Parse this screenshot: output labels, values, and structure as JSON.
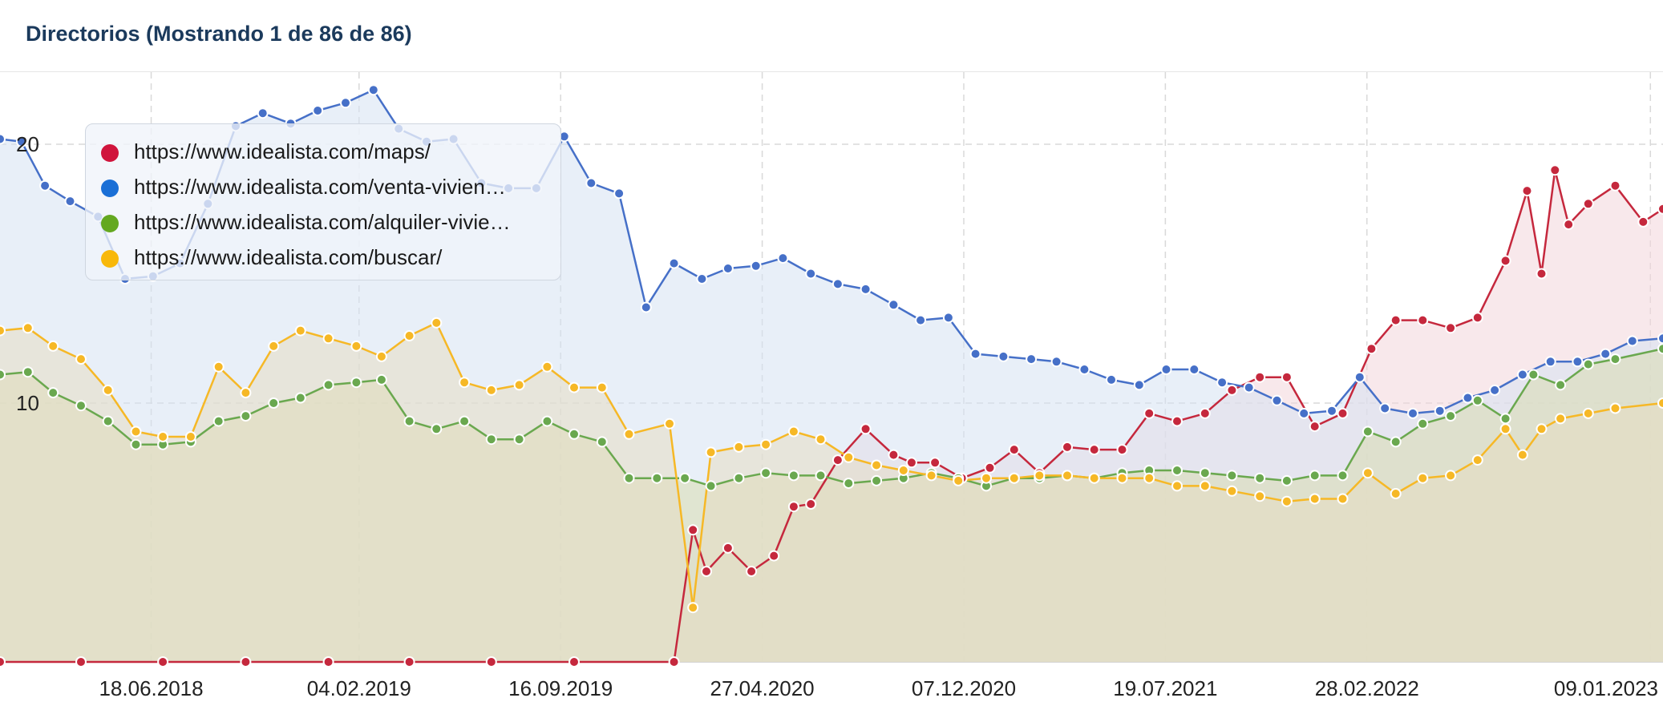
{
  "header": {
    "title": "Directorios (Mostrando 1 de 86 de 86)"
  },
  "legend": {
    "items": [
      {
        "label": "https://www.idealista.com/maps/",
        "color": "#d0143c"
      },
      {
        "label": "https://www.idealista.com/venta-vivien…",
        "color": "#1a6fd6"
      },
      {
        "label": "https://www.idealista.com/alquiler-vivie…",
        "color": "#64a820"
      },
      {
        "label": "https://www.idealista.com/buscar/",
        "color": "#f8b80a"
      }
    ]
  },
  "chart_data": {
    "type": "area",
    "x_start": "2018-01-01",
    "x_end": "2023-01-23",
    "x_ticks": [
      "18.06.2018",
      "04.02.2019",
      "16.09.2019",
      "27.04.2020",
      "07.12.2020",
      "19.07.2021",
      "28.02.2022",
      "09.01.2023"
    ],
    "y_ticks": [
      "10",
      "20"
    ],
    "ylim": [
      0,
      24
    ],
    "grid": true,
    "legend_position": "top-left",
    "series": [
      {
        "name": "https://www.idealista.com/maps/",
        "color": "#c5283d",
        "fill": "#f2d6da",
        "points": [
          [
            "2018-01-01",
            0
          ],
          [
            "2018-04-01",
            0
          ],
          [
            "2018-07-01",
            0
          ],
          [
            "2018-10-01",
            0
          ],
          [
            "2019-01-01",
            0
          ],
          [
            "2019-04-01",
            0
          ],
          [
            "2019-07-01",
            0
          ],
          [
            "2019-10-01",
            0
          ],
          [
            "2020-01-20",
            0
          ],
          [
            "2020-02-10",
            5.1
          ],
          [
            "2020-02-25",
            3.5
          ],
          [
            "2020-03-20",
            4.4
          ],
          [
            "2020-04-15",
            3.5
          ],
          [
            "2020-05-10",
            4.1
          ],
          [
            "2020-06-01",
            6
          ],
          [
            "2020-06-20",
            6.1
          ],
          [
            "2020-07-20",
            7.8
          ],
          [
            "2020-08-20",
            9
          ],
          [
            "2020-09-20",
            8
          ],
          [
            "2020-10-10",
            7.7
          ],
          [
            "2020-11-05",
            7.7
          ],
          [
            "2020-12-05",
            7.1
          ],
          [
            "2021-01-05",
            7.5
          ],
          [
            "2021-02-01",
            8.2
          ],
          [
            "2021-03-01",
            7.3
          ],
          [
            "2021-04-01",
            8.3
          ],
          [
            "2021-05-01",
            8.2
          ],
          [
            "2021-06-01",
            8.2
          ],
          [
            "2021-07-01",
            9.6
          ],
          [
            "2021-08-01",
            9.3
          ],
          [
            "2021-09-01",
            9.6
          ],
          [
            "2021-10-01",
            10.5
          ],
          [
            "2021-11-01",
            11
          ],
          [
            "2021-12-01",
            11
          ],
          [
            "2022-01-01",
            9.1
          ],
          [
            "2022-02-01",
            9.6
          ],
          [
            "2022-03-05",
            12.1
          ],
          [
            "2022-04-01",
            13.2
          ],
          [
            "2022-05-01",
            13.2
          ],
          [
            "2022-06-01",
            12.9
          ],
          [
            "2022-07-01",
            13.3
          ],
          [
            "2022-08-01",
            15.5
          ],
          [
            "2022-08-25",
            18.2
          ],
          [
            "2022-09-10",
            15
          ],
          [
            "2022-09-25",
            19
          ],
          [
            "2022-10-10",
            16.9
          ],
          [
            "2022-11-01",
            17.7
          ],
          [
            "2022-12-01",
            18.4
          ],
          [
            "2023-01-01",
            17
          ],
          [
            "2023-01-23",
            17.5
          ]
        ]
      },
      {
        "name": "https://www.idealista.com/venta-vivienda/",
        "color": "#4670c8",
        "fill": "#d6e2f3",
        "points": [
          [
            "2018-01-01",
            20.2
          ],
          [
            "2018-01-25",
            20.1
          ],
          [
            "2018-02-20",
            18.4
          ],
          [
            "2018-03-20",
            17.8
          ],
          [
            "2018-04-20",
            17.2
          ],
          [
            "2018-05-20",
            14.8
          ],
          [
            "2018-06-20",
            14.9
          ],
          [
            "2018-07-20",
            15.4
          ],
          [
            "2018-08-20",
            17.7
          ],
          [
            "2018-09-20",
            20.7
          ],
          [
            "2018-10-20",
            21.2
          ],
          [
            "2018-11-20",
            20.8
          ],
          [
            "2018-12-20",
            21.3
          ],
          [
            "2019-01-20",
            21.6
          ],
          [
            "2019-02-20",
            22.1
          ],
          [
            "2019-03-20",
            20.6
          ],
          [
            "2019-04-20",
            20.1
          ],
          [
            "2019-05-20",
            20.2
          ],
          [
            "2019-06-20",
            18.5
          ],
          [
            "2019-07-20",
            18.3
          ],
          [
            "2019-08-20",
            18.3
          ],
          [
            "2019-09-20",
            20.3
          ],
          [
            "2019-10-20",
            18.5
          ],
          [
            "2019-11-20",
            18.1
          ],
          [
            "2019-12-20",
            13.7
          ],
          [
            "2020-01-20",
            15.4
          ],
          [
            "2020-02-20",
            14.8
          ],
          [
            "2020-03-20",
            15.2
          ],
          [
            "2020-04-20",
            15.3
          ],
          [
            "2020-05-20",
            15.6
          ],
          [
            "2020-06-20",
            15
          ],
          [
            "2020-07-20",
            14.6
          ],
          [
            "2020-08-20",
            14.4
          ],
          [
            "2020-09-20",
            13.8
          ],
          [
            "2020-10-20",
            13.2
          ],
          [
            "2020-11-20",
            13.3
          ],
          [
            "2020-12-20",
            11.9
          ],
          [
            "2021-01-20",
            11.8
          ],
          [
            "2021-02-20",
            11.7
          ],
          [
            "2021-03-20",
            11.6
          ],
          [
            "2021-04-20",
            11.3
          ],
          [
            "2021-05-20",
            10.9
          ],
          [
            "2021-06-20",
            10.7
          ],
          [
            "2021-07-20",
            11.3
          ],
          [
            "2021-08-20",
            11.3
          ],
          [
            "2021-09-20",
            10.8
          ],
          [
            "2021-10-20",
            10.6
          ],
          [
            "2021-11-20",
            10.1
          ],
          [
            "2021-12-20",
            9.6
          ],
          [
            "2022-01-20",
            9.7
          ],
          [
            "2022-02-20",
            11
          ],
          [
            "2022-03-20",
            9.8
          ],
          [
            "2022-04-20",
            9.6
          ],
          [
            "2022-05-20",
            9.7
          ],
          [
            "2022-06-20",
            10.2
          ],
          [
            "2022-07-20",
            10.5
          ],
          [
            "2022-08-20",
            11.1
          ],
          [
            "2022-09-20",
            11.6
          ],
          [
            "2022-10-20",
            11.6
          ],
          [
            "2022-11-20",
            11.9
          ],
          [
            "2022-12-20",
            12.4
          ],
          [
            "2023-01-23",
            12.5
          ]
        ]
      },
      {
        "name": "https://www.idealista.com/alquiler-viviendas/",
        "color": "#6aa84f",
        "fill": "#d9dcb0",
        "points": [
          [
            "2018-01-01",
            11.1
          ],
          [
            "2018-02-01",
            11.2
          ],
          [
            "2018-03-01",
            10.4
          ],
          [
            "2018-04-01",
            9.9
          ],
          [
            "2018-05-01",
            9.3
          ],
          [
            "2018-06-01",
            8.4
          ],
          [
            "2018-07-01",
            8.4
          ],
          [
            "2018-08-01",
            8.5
          ],
          [
            "2018-09-01",
            9.3
          ],
          [
            "2018-10-01",
            9.5
          ],
          [
            "2018-11-01",
            10
          ],
          [
            "2018-12-01",
            10.2
          ],
          [
            "2019-01-01",
            10.7
          ],
          [
            "2019-02-01",
            10.8
          ],
          [
            "2019-03-01",
            10.9
          ],
          [
            "2019-04-01",
            9.3
          ],
          [
            "2019-05-01",
            9
          ],
          [
            "2019-06-01",
            9.3
          ],
          [
            "2019-07-01",
            8.6
          ],
          [
            "2019-08-01",
            8.6
          ],
          [
            "2019-09-01",
            9.3
          ],
          [
            "2019-10-01",
            8.8
          ],
          [
            "2019-11-01",
            8.5
          ],
          [
            "2019-12-01",
            7.1
          ],
          [
            "2020-01-01",
            7.1
          ],
          [
            "2020-02-01",
            7.1
          ],
          [
            "2020-03-01",
            6.8
          ],
          [
            "2020-04-01",
            7.1
          ],
          [
            "2020-05-01",
            7.3
          ],
          [
            "2020-06-01",
            7.2
          ],
          [
            "2020-07-01",
            7.2
          ],
          [
            "2020-08-01",
            6.9
          ],
          [
            "2020-09-01",
            7
          ],
          [
            "2020-10-01",
            7.1
          ],
          [
            "2020-11-01",
            7.3
          ],
          [
            "2020-12-01",
            7.1
          ],
          [
            "2021-01-01",
            6.8
          ],
          [
            "2021-02-01",
            7.1
          ],
          [
            "2021-03-01",
            7.1
          ],
          [
            "2021-04-01",
            7.2
          ],
          [
            "2021-05-01",
            7.1
          ],
          [
            "2021-06-01",
            7.3
          ],
          [
            "2021-07-01",
            7.4
          ],
          [
            "2021-08-01",
            7.4
          ],
          [
            "2021-09-01",
            7.3
          ],
          [
            "2021-10-01",
            7.2
          ],
          [
            "2021-11-01",
            7.1
          ],
          [
            "2021-12-01",
            7
          ],
          [
            "2022-01-01",
            7.2
          ],
          [
            "2022-02-01",
            7.2
          ],
          [
            "2022-03-01",
            8.9
          ],
          [
            "2022-04-01",
            8.5
          ],
          [
            "2022-05-01",
            9.2
          ],
          [
            "2022-06-01",
            9.5
          ],
          [
            "2022-07-01",
            10.1
          ],
          [
            "2022-08-01",
            9.4
          ],
          [
            "2022-09-01",
            11.1
          ],
          [
            "2022-10-01",
            10.7
          ],
          [
            "2022-11-01",
            11.5
          ],
          [
            "2022-12-01",
            11.7
          ],
          [
            "2023-01-23",
            12.1
          ]
        ]
      },
      {
        "name": "https://www.idealista.com/buscar/",
        "color": "#f6b826",
        "fill": "#e5dcc3",
        "points": [
          [
            "2018-01-01",
            12.8
          ],
          [
            "2018-02-01",
            12.9
          ],
          [
            "2018-03-01",
            12.2
          ],
          [
            "2018-04-01",
            11.7
          ],
          [
            "2018-05-01",
            10.5
          ],
          [
            "2018-06-01",
            8.9
          ],
          [
            "2018-07-01",
            8.7
          ],
          [
            "2018-08-01",
            8.7
          ],
          [
            "2018-09-01",
            11.4
          ],
          [
            "2018-10-01",
            10.4
          ],
          [
            "2018-11-01",
            12.2
          ],
          [
            "2018-12-01",
            12.8
          ],
          [
            "2019-01-01",
            12.5
          ],
          [
            "2019-02-01",
            12.2
          ],
          [
            "2019-03-01",
            11.8
          ],
          [
            "2019-04-01",
            12.6
          ],
          [
            "2019-05-01",
            13.1
          ],
          [
            "2019-06-01",
            10.8
          ],
          [
            "2019-07-01",
            10.5
          ],
          [
            "2019-08-01",
            10.7
          ],
          [
            "2019-09-01",
            11.4
          ],
          [
            "2019-10-01",
            10.6
          ],
          [
            "2019-11-01",
            10.6
          ],
          [
            "2019-12-01",
            8.8
          ],
          [
            "2020-01-15",
            9.2
          ],
          [
            "2020-02-10",
            2.1
          ],
          [
            "2020-03-01",
            8.1
          ],
          [
            "2020-04-01",
            8.3
          ],
          [
            "2020-05-01",
            8.4
          ],
          [
            "2020-06-01",
            8.9
          ],
          [
            "2020-07-01",
            8.6
          ],
          [
            "2020-08-01",
            7.9
          ],
          [
            "2020-09-01",
            7.6
          ],
          [
            "2020-10-01",
            7.4
          ],
          [
            "2020-11-01",
            7.2
          ],
          [
            "2020-12-01",
            7
          ],
          [
            "2021-01-01",
            7.1
          ],
          [
            "2021-02-01",
            7.1
          ],
          [
            "2021-03-01",
            7.2
          ],
          [
            "2021-04-01",
            7.2
          ],
          [
            "2021-05-01",
            7.1
          ],
          [
            "2021-06-01",
            7.1
          ],
          [
            "2021-07-01",
            7.1
          ],
          [
            "2021-08-01",
            6.8
          ],
          [
            "2021-09-01",
            6.8
          ],
          [
            "2021-10-01",
            6.6
          ],
          [
            "2021-11-01",
            6.4
          ],
          [
            "2021-12-01",
            6.2
          ],
          [
            "2022-01-01",
            6.3
          ],
          [
            "2022-02-01",
            6.3
          ],
          [
            "2022-03-01",
            7.3
          ],
          [
            "2022-04-01",
            6.5
          ],
          [
            "2022-05-01",
            7.1
          ],
          [
            "2022-06-01",
            7.2
          ],
          [
            "2022-07-01",
            7.8
          ],
          [
            "2022-08-01",
            9
          ],
          [
            "2022-08-20",
            8
          ],
          [
            "2022-09-10",
            9
          ],
          [
            "2022-10-01",
            9.4
          ],
          [
            "2022-11-01",
            9.6
          ],
          [
            "2022-12-01",
            9.8
          ],
          [
            "2023-01-23",
            10
          ]
        ]
      }
    ]
  }
}
